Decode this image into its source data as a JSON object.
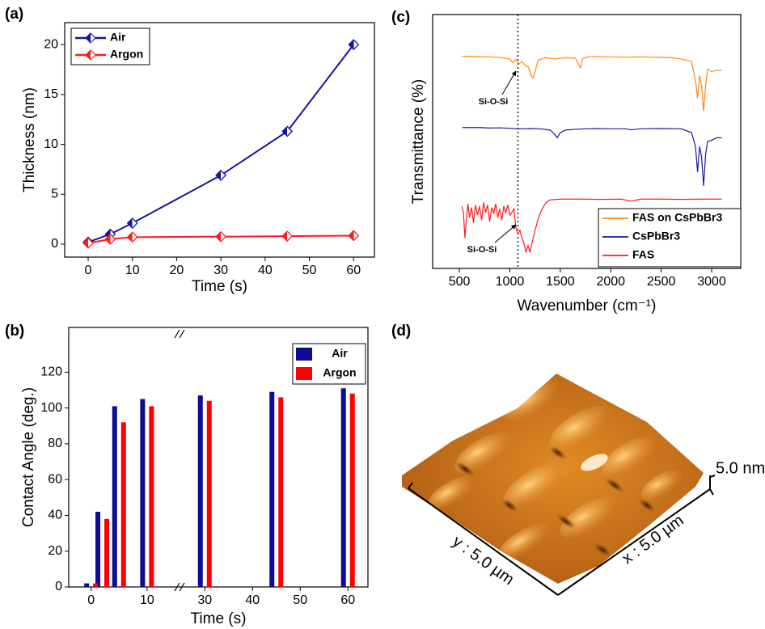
{
  "chart_data": [
    {
      "type": "line",
      "label": "(a)",
      "xlabel": "Time (s)",
      "ylabel": "Thickness (nm)",
      "x": [
        0,
        5,
        10,
        30,
        45,
        60
      ],
      "series": [
        {
          "name": "Air",
          "color": "#1414a0",
          "values": [
            0.2,
            1.0,
            2.1,
            6.9,
            11.3,
            20
          ]
        },
        {
          "name": "Argon",
          "color": "#ff1a1a",
          "values": [
            0.1,
            0.5,
            0.7,
            0.75,
            0.8,
            0.85
          ]
        }
      ],
      "xlim": [
        -5.3,
        64.7
      ],
      "xticks": [
        0,
        10,
        20,
        30,
        40,
        50,
        60
      ],
      "ylim": [
        -1.3,
        22.2
      ],
      "yticks": [
        0,
        5,
        10,
        15,
        20
      ],
      "marker": "half-filled diamond",
      "legend": "upper left"
    },
    {
      "type": "bar",
      "label": "(b)",
      "xlabel": "Time (s)",
      "ylabel": "Contact Angle (deg.)",
      "x": [
        0,
        2,
        5,
        10,
        30,
        45,
        60
      ],
      "series": [
        {
          "name": "Air",
          "color": "#0c0c96",
          "values": [
            2,
            42,
            101,
            105,
            107,
            109,
            111
          ]
        },
        {
          "name": "Argon",
          "color": "#ff0000",
          "values": [
            2,
            38,
            92,
            101,
            104,
            106,
            108
          ]
        }
      ],
      "xsegments": [
        {
          "xlim": [
            -4,
            15.8
          ],
          "xticks": [
            0,
            10
          ]
        },
        {
          "xlim": [
            24.7,
            64.2
          ],
          "xticks": [
            30,
            40,
            50,
            60
          ]
        }
      ],
      "ylim": [
        0,
        145
      ],
      "yticks": [
        0,
        20,
        40,
        60,
        80,
        100,
        120
      ],
      "legend": "upper right"
    },
    {
      "type": "line",
      "label": "(c)",
      "xlabel": "Wavenumber (cm⁻¹)",
      "ylabel": "Transmittance (%)",
      "xlim": [
        235,
        3288
      ],
      "xticks": [
        500,
        1000,
        1500,
        2000,
        2500,
        3000
      ],
      "ylim": [
        0,
        100
      ],
      "vline": 1080,
      "annotations": [
        "Si-O-Si",
        "Si-O-Si"
      ],
      "legend": "lower right",
      "series": [
        {
          "name": "FAS on CsPbBr3",
          "color": "#ff8a14",
          "x": [
            525,
            600,
            700,
            800,
            900,
            950,
            1000,
            1030,
            1060,
            1090,
            1120,
            1150,
            1180,
            1210,
            1230,
            1250,
            1280,
            1350,
            1450,
            1550,
            1650,
            1700,
            1720,
            1760,
            1850,
            2000,
            2150,
            2300,
            2450,
            2600,
            2700,
            2800,
            2840,
            2860,
            2880,
            2900,
            2920,
            2940,
            2960,
            3000,
            3050,
            3100
          ],
          "values": [
            83.5,
            83.6,
            83.4,
            83.3,
            83.1,
            82.8,
            82.5,
            81.0,
            82.3,
            80.5,
            81.5,
            80.0,
            79.5,
            76.0,
            75.0,
            77.5,
            82.0,
            83.0,
            82.5,
            83.0,
            82.8,
            79.0,
            82.5,
            83.3,
            83.4,
            83.3,
            83.2,
            83.3,
            83.2,
            83.0,
            82.5,
            81.5,
            74.0,
            67.0,
            76.0,
            72.0,
            62.0,
            72.0,
            78.5,
            77.5,
            78.0,
            78.0
          ]
        },
        {
          "name": "CsPbBr3",
          "color": "#1a1aa0",
          "x": [
            530,
            700,
            800,
            900,
            1000,
            1100,
            1200,
            1300,
            1400,
            1440,
            1470,
            1500,
            1550,
            1650,
            1750,
            1850,
            2000,
            2150,
            2200,
            2300,
            2500,
            2700,
            2800,
            2840,
            2860,
            2880,
            2900,
            2920,
            2940,
            2960,
            3000,
            3050,
            3100
          ],
          "values": [
            55.5,
            55.5,
            55.3,
            55.4,
            55.2,
            55.0,
            55.1,
            55.0,
            54.5,
            53.0,
            51.5,
            53.5,
            54.5,
            54.8,
            55.0,
            55.1,
            55.0,
            55.0,
            54.6,
            55.0,
            55.1,
            55.0,
            53.5,
            48.0,
            38.0,
            48.0,
            44.0,
            32.5,
            45.0,
            50.0,
            50.5,
            51.5,
            51.5
          ]
        },
        {
          "name": "FAS",
          "color": "#ff1a1a",
          "x": [
            525,
            540,
            555,
            570,
            585,
            600,
            620,
            640,
            660,
            680,
            700,
            720,
            740,
            760,
            780,
            800,
            820,
            840,
            860,
            880,
            900,
            920,
            940,
            960,
            980,
            1000,
            1020,
            1040,
            1060,
            1080,
            1100,
            1120,
            1140,
            1160,
            1180,
            1200,
            1220,
            1250,
            1280,
            1320,
            1360,
            1400,
            1500,
            1700,
            1900,
            2100,
            2200,
            2300,
            2500,
            2700,
            2900,
            3100
          ],
          "values": [
            24.5,
            22.0,
            12.0,
            20.0,
            25.5,
            20.0,
            24.0,
            18.0,
            25.0,
            21.0,
            24.5,
            19.0,
            26.0,
            22.0,
            25.0,
            18.5,
            24.0,
            21.5,
            25.5,
            20.0,
            23.5,
            19.0,
            24.5,
            22.0,
            25.0,
            21.0,
            22.0,
            23.5,
            16.0,
            13.5,
            15.0,
            12.0,
            10.0,
            6.5,
            9.0,
            6.5,
            10.0,
            15.0,
            19.5,
            23.5,
            26.0,
            27.0,
            27.3,
            27.3,
            27.2,
            27.3,
            26.5,
            27.3,
            27.3,
            27.2,
            27.3,
            27.3
          ]
        }
      ]
    },
    {
      "type": "afm-surface",
      "label": "(d)",
      "z_label": "5.0 nm",
      "x_label": "x : 5.0 µm",
      "y_label": "y : 5.0 µm"
    }
  ]
}
